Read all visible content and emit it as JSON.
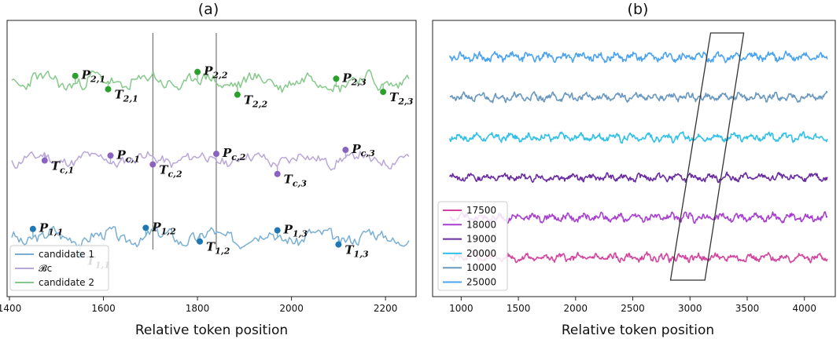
{
  "chart_data": [
    {
      "type": "line",
      "title": "(a)",
      "xlabel": "Relative token position",
      "ylabel": "",
      "xlim": [
        1395,
        2265
      ],
      "xticks": [
        1400,
        1600,
        1800,
        2000,
        2200
      ],
      "grid": false,
      "legend_position": "bottom-left",
      "series": [
        {
          "name": "candidate 1",
          "color": "#7aafd4",
          "base": 0.2,
          "amp": 0.55,
          "x_start": 1405,
          "x_end": 2250,
          "seed": 3
        },
        {
          "name": "𝓑c",
          "color": "#b9a7d9",
          "base": 0.5,
          "amp": 0.5,
          "x_start": 1405,
          "x_end": 2250,
          "seed": 11
        },
        {
          "name": "candidate 2",
          "color": "#86c98a",
          "base": 0.8,
          "amp": 0.55,
          "x_start": 1405,
          "x_end": 2250,
          "seed": 23
        }
      ],
      "points": [
        {
          "label": "P",
          "sub": "2,1",
          "x": 1540,
          "series": "candidate 2",
          "kind": "peak"
        },
        {
          "label": "P",
          "sub": "2,2",
          "x": 1800,
          "series": "candidate 2",
          "kind": "peak"
        },
        {
          "label": "P",
          "sub": "2,3",
          "x": 2095,
          "series": "candidate 2",
          "kind": "peak"
        },
        {
          "label": "T",
          "sub": "2,1",
          "x": 1610,
          "series": "candidate 2",
          "kind": "trough"
        },
        {
          "label": "T",
          "sub": "2,2",
          "x": 1885,
          "series": "candidate 2",
          "kind": "trough"
        },
        {
          "label": "T",
          "sub": "2,3",
          "x": 2195,
          "series": "candidate 2",
          "kind": "trough"
        },
        {
          "label": "P",
          "sub": "c,1",
          "x": 1615,
          "series": "𝓑c",
          "kind": "peak"
        },
        {
          "label": "P",
          "sub": "c,2",
          "x": 1840,
          "series": "𝓑c",
          "kind": "peak"
        },
        {
          "label": "P",
          "sub": "c,3",
          "x": 2115,
          "series": "𝓑c",
          "kind": "peak"
        },
        {
          "label": "T",
          "sub": "c,1",
          "x": 1475,
          "series": "𝓑c",
          "kind": "trough"
        },
        {
          "label": "T",
          "sub": "c,2",
          "x": 1705,
          "series": "𝓑c",
          "kind": "trough"
        },
        {
          "label": "T",
          "sub": "c,3",
          "x": 1970,
          "series": "𝓑c",
          "kind": "trough"
        },
        {
          "label": "P",
          "sub": "1,1",
          "x": 1450,
          "series": "candidate 1",
          "kind": "peak"
        },
        {
          "label": "P",
          "sub": "1,2",
          "x": 1690,
          "series": "candidate 1",
          "kind": "peak"
        },
        {
          "label": "P",
          "sub": "1,3",
          "x": 1970,
          "series": "candidate 1",
          "kind": "peak"
        },
        {
          "label": "T",
          "sub": "1,1",
          "x": 1550,
          "series": "candidate 1",
          "kind": "trough"
        },
        {
          "label": "T",
          "sub": "1,2",
          "x": 1805,
          "series": "candidate 1",
          "kind": "trough"
        },
        {
          "label": "T",
          "sub": "1,3",
          "x": 2100,
          "series": "candidate 1",
          "kind": "trough"
        }
      ],
      "reference_lines_x": [
        1705,
        1840
      ]
    },
    {
      "type": "line",
      "title": "(b)",
      "xlabel": "Relative token position",
      "ylabel": "",
      "xlim": [
        750,
        4270
      ],
      "xticks": [
        1000,
        1500,
        2000,
        2500,
        3000,
        3500,
        4000
      ],
      "grid": false,
      "legend_position": "bottom-left",
      "series": [
        {
          "name": "17500",
          "color": "#d4449e",
          "base": 0.12,
          "amp": 0.55,
          "x_start": 900,
          "x_end": 4200,
          "seed": 5
        },
        {
          "name": "18000",
          "color": "#a83fd0",
          "base": 0.275,
          "amp": 0.55,
          "x_start": 900,
          "x_end": 4200,
          "seed": 9
        },
        {
          "name": "19000",
          "color": "#6a2ba0",
          "base": 0.43,
          "amp": 0.5,
          "x_start": 900,
          "x_end": 4200,
          "seed": 13
        },
        {
          "name": "20000",
          "color": "#30c0e8",
          "base": 0.585,
          "amp": 0.55,
          "x_start": 900,
          "x_end": 4200,
          "seed": 17
        },
        {
          "name": "10000",
          "color": "#6a98bf",
          "base": 0.74,
          "amp": 0.55,
          "x_start": 900,
          "x_end": 4200,
          "seed": 21
        },
        {
          "name": "25000",
          "color": "#4aa3ef",
          "base": 0.895,
          "amp": 0.55,
          "x_start": 900,
          "x_end": 4200,
          "seed": 29
        }
      ],
      "parallelogram_x": {
        "bottom_left": 2830,
        "bottom_right": 3130,
        "top_left": 3180,
        "top_right": 3470
      }
    }
  ]
}
